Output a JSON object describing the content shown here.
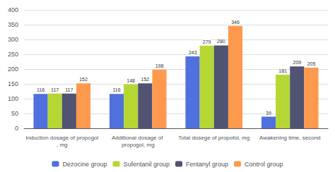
{
  "chart_data": {
    "type": "bar",
    "categories": [
      "Induction dosage of propogol, mg",
      "Additional dosage of propogol, mg",
      "Total dosege of propofol, mg",
      "Awakening time, second"
    ],
    "series": [
      {
        "name": "Dezocine group",
        "values": [
          116,
          116,
          243,
          39
        ]
      },
      {
        "name": "Sufentanil group",
        "values": [
          117,
          148,
          279,
          181
        ]
      },
      {
        "name": "Fentanyl group",
        "values": [
          117,
          152,
          280,
          209
        ]
      },
      {
        "name": "Control group",
        "values": [
          152,
          198,
          346,
          205
        ]
      }
    ],
    "ylim": [
      0,
      400
    ],
    "yticks": [
      0,
      50,
      100,
      150,
      200,
      250,
      300,
      350,
      400
    ],
    "grid": true,
    "legend": "bottom",
    "data_labels": true
  }
}
